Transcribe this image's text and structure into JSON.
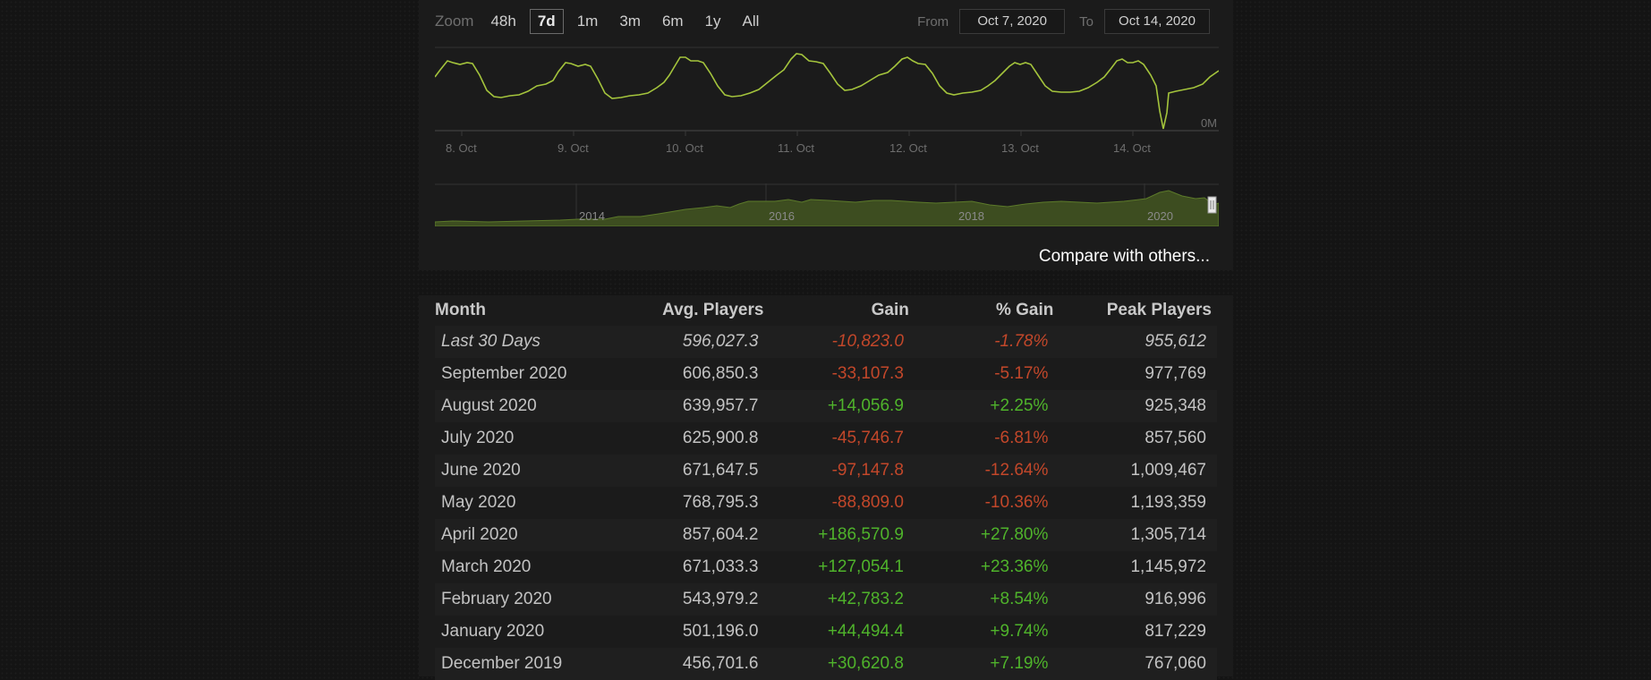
{
  "zoom": {
    "label": "Zoom",
    "buttons": [
      "48h",
      "7d",
      "1m",
      "3m",
      "6m",
      "1y",
      "All"
    ],
    "active": "7d"
  },
  "range": {
    "from_label": "From",
    "from_value": "Oct 7, 2020",
    "to_label": "To",
    "to_value": "Oct 14, 2020"
  },
  "main_chart": {
    "x_labels": [
      "8. Oct",
      "9. Oct",
      "10. Oct",
      "11. Oct",
      "12. Oct",
      "13. Oct",
      "14. Oct"
    ],
    "y_label": "0M",
    "line_color": "#a4c43c"
  },
  "navigator": {
    "year_labels": [
      "2014",
      "2016",
      "2018",
      "2020"
    ],
    "fill_color": "#3d4d20",
    "line_color": "#5c7a2a"
  },
  "compare_link": "Compare with others...",
  "table": {
    "headers": [
      "Month",
      "Avg. Players",
      "Gain",
      "% Gain",
      "Peak Players"
    ],
    "rows": [
      {
        "month": "Last 30 Days",
        "avg": "596,027.3",
        "gain": "-10,823.0",
        "pct": "-1.78%",
        "peak": "955,612",
        "trend": "neg",
        "italic": true
      },
      {
        "month": "September 2020",
        "avg": "606,850.3",
        "gain": "-33,107.3",
        "pct": "-5.17%",
        "peak": "977,769",
        "trend": "neg"
      },
      {
        "month": "August 2020",
        "avg": "639,957.7",
        "gain": "+14,056.9",
        "pct": "+2.25%",
        "peak": "925,348",
        "trend": "pos"
      },
      {
        "month": "July 2020",
        "avg": "625,900.8",
        "gain": "-45,746.7",
        "pct": "-6.81%",
        "peak": "857,560",
        "trend": "neg"
      },
      {
        "month": "June 2020",
        "avg": "671,647.5",
        "gain": "-97,147.8",
        "pct": "-12.64%",
        "peak": "1,009,467",
        "trend": "neg"
      },
      {
        "month": "May 2020",
        "avg": "768,795.3",
        "gain": "-88,809.0",
        "pct": "-10.36%",
        "peak": "1,193,359",
        "trend": "neg"
      },
      {
        "month": "April 2020",
        "avg": "857,604.2",
        "gain": "+186,570.9",
        "pct": "+27.80%",
        "peak": "1,305,714",
        "trend": "pos"
      },
      {
        "month": "March 2020",
        "avg": "671,033.3",
        "gain": "+127,054.1",
        "pct": "+23.36%",
        "peak": "1,145,972",
        "trend": "pos"
      },
      {
        "month": "February 2020",
        "avg": "543,979.2",
        "gain": "+42,783.2",
        "pct": "+8.54%",
        "peak": "916,996",
        "trend": "pos"
      },
      {
        "month": "January 2020",
        "avg": "501,196.0",
        "gain": "+44,494.4",
        "pct": "+9.74%",
        "peak": "817,229",
        "trend": "pos"
      },
      {
        "month": "December 2019",
        "avg": "456,701.6",
        "gain": "+30,620.8",
        "pct": "+7.19%",
        "peak": "767,060",
        "trend": "pos"
      }
    ]
  }
}
